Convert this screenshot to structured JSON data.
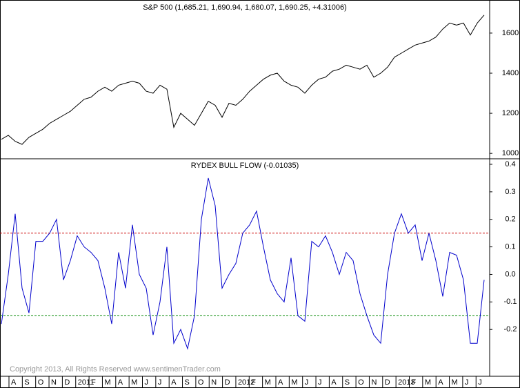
{
  "chart_data": [
    {
      "type": "line",
      "title": "S&P 500 (1,685.21, 1,690.94, 1,680.07, 1,690.25, +4.31006)",
      "series": [
        {
          "name": "S&P 500",
          "color": "#000000",
          "values": [
            1070,
            1090,
            1060,
            1045,
            1080,
            1100,
            1120,
            1150,
            1170,
            1190,
            1210,
            1240,
            1270,
            1280,
            1310,
            1330,
            1310,
            1340,
            1350,
            1360,
            1350,
            1310,
            1300,
            1340,
            1320,
            1130,
            1200,
            1170,
            1140,
            1200,
            1260,
            1240,
            1180,
            1250,
            1240,
            1270,
            1310,
            1340,
            1370,
            1390,
            1400,
            1360,
            1340,
            1330,
            1300,
            1340,
            1370,
            1380,
            1410,
            1420,
            1440,
            1430,
            1420,
            1440,
            1380,
            1400,
            1430,
            1480,
            1500,
            1520,
            1540,
            1550,
            1560,
            1580,
            1620,
            1650,
            1640,
            1650,
            1590,
            1650,
            1690
          ]
        }
      ],
      "ylim": [
        973,
        1765
      ],
      "yticks": [
        1000,
        1200,
        1400,
        1600
      ]
    },
    {
      "type": "line",
      "title": "RYDEX BULL FLOW (-0.01035)",
      "series": [
        {
          "name": "RYDEX BULL FLOW",
          "color": "#0000cc",
          "values": [
            -0.18,
            0.0,
            0.22,
            -0.05,
            -0.14,
            0.12,
            0.12,
            0.15,
            0.2,
            -0.02,
            0.05,
            0.14,
            0.1,
            0.08,
            0.05,
            -0.05,
            -0.18,
            0.08,
            -0.05,
            0.18,
            0.0,
            -0.05,
            -0.22,
            -0.1,
            0.1,
            -0.25,
            -0.2,
            -0.27,
            -0.15,
            0.2,
            0.35,
            0.25,
            -0.05,
            0.0,
            0.04,
            0.15,
            0.18,
            0.23,
            0.1,
            -0.02,
            -0.07,
            -0.1,
            0.06,
            -0.15,
            -0.17,
            0.12,
            0.1,
            0.14,
            0.08,
            0.0,
            0.08,
            0.05,
            -0.07,
            -0.15,
            -0.22,
            -0.25,
            0.0,
            0.15,
            0.22,
            0.15,
            0.18,
            0.05,
            0.15,
            0.05,
            -0.08,
            0.08,
            0.07,
            -0.02,
            -0.25,
            -0.25,
            -0.02
          ]
        }
      ],
      "ylim": [
        -0.37,
        0.42
      ],
      "yticks": [
        0.4,
        0.3,
        0.2,
        0.1,
        {
          "value": 0,
          "label": "0.0"
        },
        -0.1,
        -0.2
      ],
      "hlines": [
        {
          "value": 0.15,
          "color": "#cc0000"
        },
        {
          "value": -0.15,
          "color": "#008800"
        }
      ]
    }
  ],
  "x_axis": {
    "labels": [
      "A",
      "S",
      "O",
      "N",
      "D",
      "2011",
      "F",
      "M",
      "A",
      "M",
      "J",
      "J",
      "A",
      "S",
      "O",
      "N",
      "D",
      "2012",
      "F",
      "M",
      "A",
      "M",
      "J",
      "J",
      "A",
      "S",
      "O",
      "N",
      "D",
      "2013",
      "F",
      "M",
      "A",
      "M",
      "J",
      "J"
    ]
  },
  "footer": "Copyright 2013, All Rights Reserved  www.sentimenTrader.com"
}
